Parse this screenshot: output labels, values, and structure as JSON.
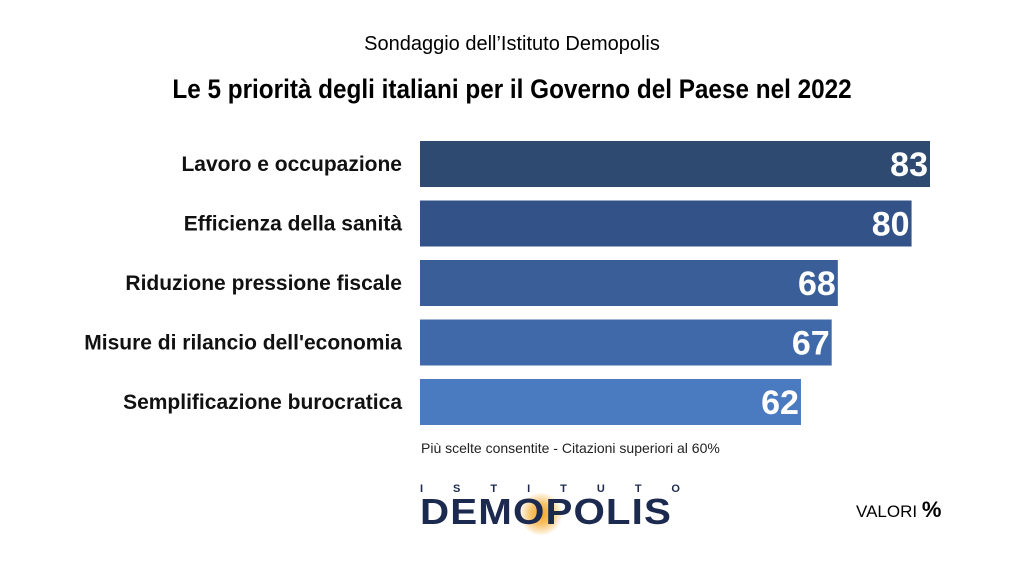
{
  "header": {
    "subtitle": "Sondaggio dell’Istituto Demopolis",
    "title": "Le 5 priorità degli italiani per il Governo del Paese nel 2022"
  },
  "chart_data": {
    "type": "bar",
    "orientation": "horizontal",
    "title": "Le 5 priorità degli italiani per il Governo del Paese nel 2022",
    "subtitle": "Sondaggio dell’Istituto Demopolis",
    "categories": [
      "Lavoro e occupazione",
      "Efficienza della sanità",
      "Riduzione pressione fiscale",
      "Misure di rilancio dell'economia",
      "Semplificazione burocratica"
    ],
    "values": [
      83,
      80,
      68,
      67,
      62
    ],
    "bar_colors": [
      "#2e4a70",
      "#335287",
      "#3a5f98",
      "#4069aa",
      "#4a7bc0"
    ],
    "value_label_color": "#ffffff",
    "xlim": [
      0,
      83
    ],
    "grid": false
  },
  "footer": {
    "note": "Più scelte consentite - Citazioni superiori al 60%",
    "logo_top": "ISTITUTO",
    "logo_main": "DEMOPOLIS",
    "units_prefix": "VALORI",
    "units_symbol": "%"
  }
}
